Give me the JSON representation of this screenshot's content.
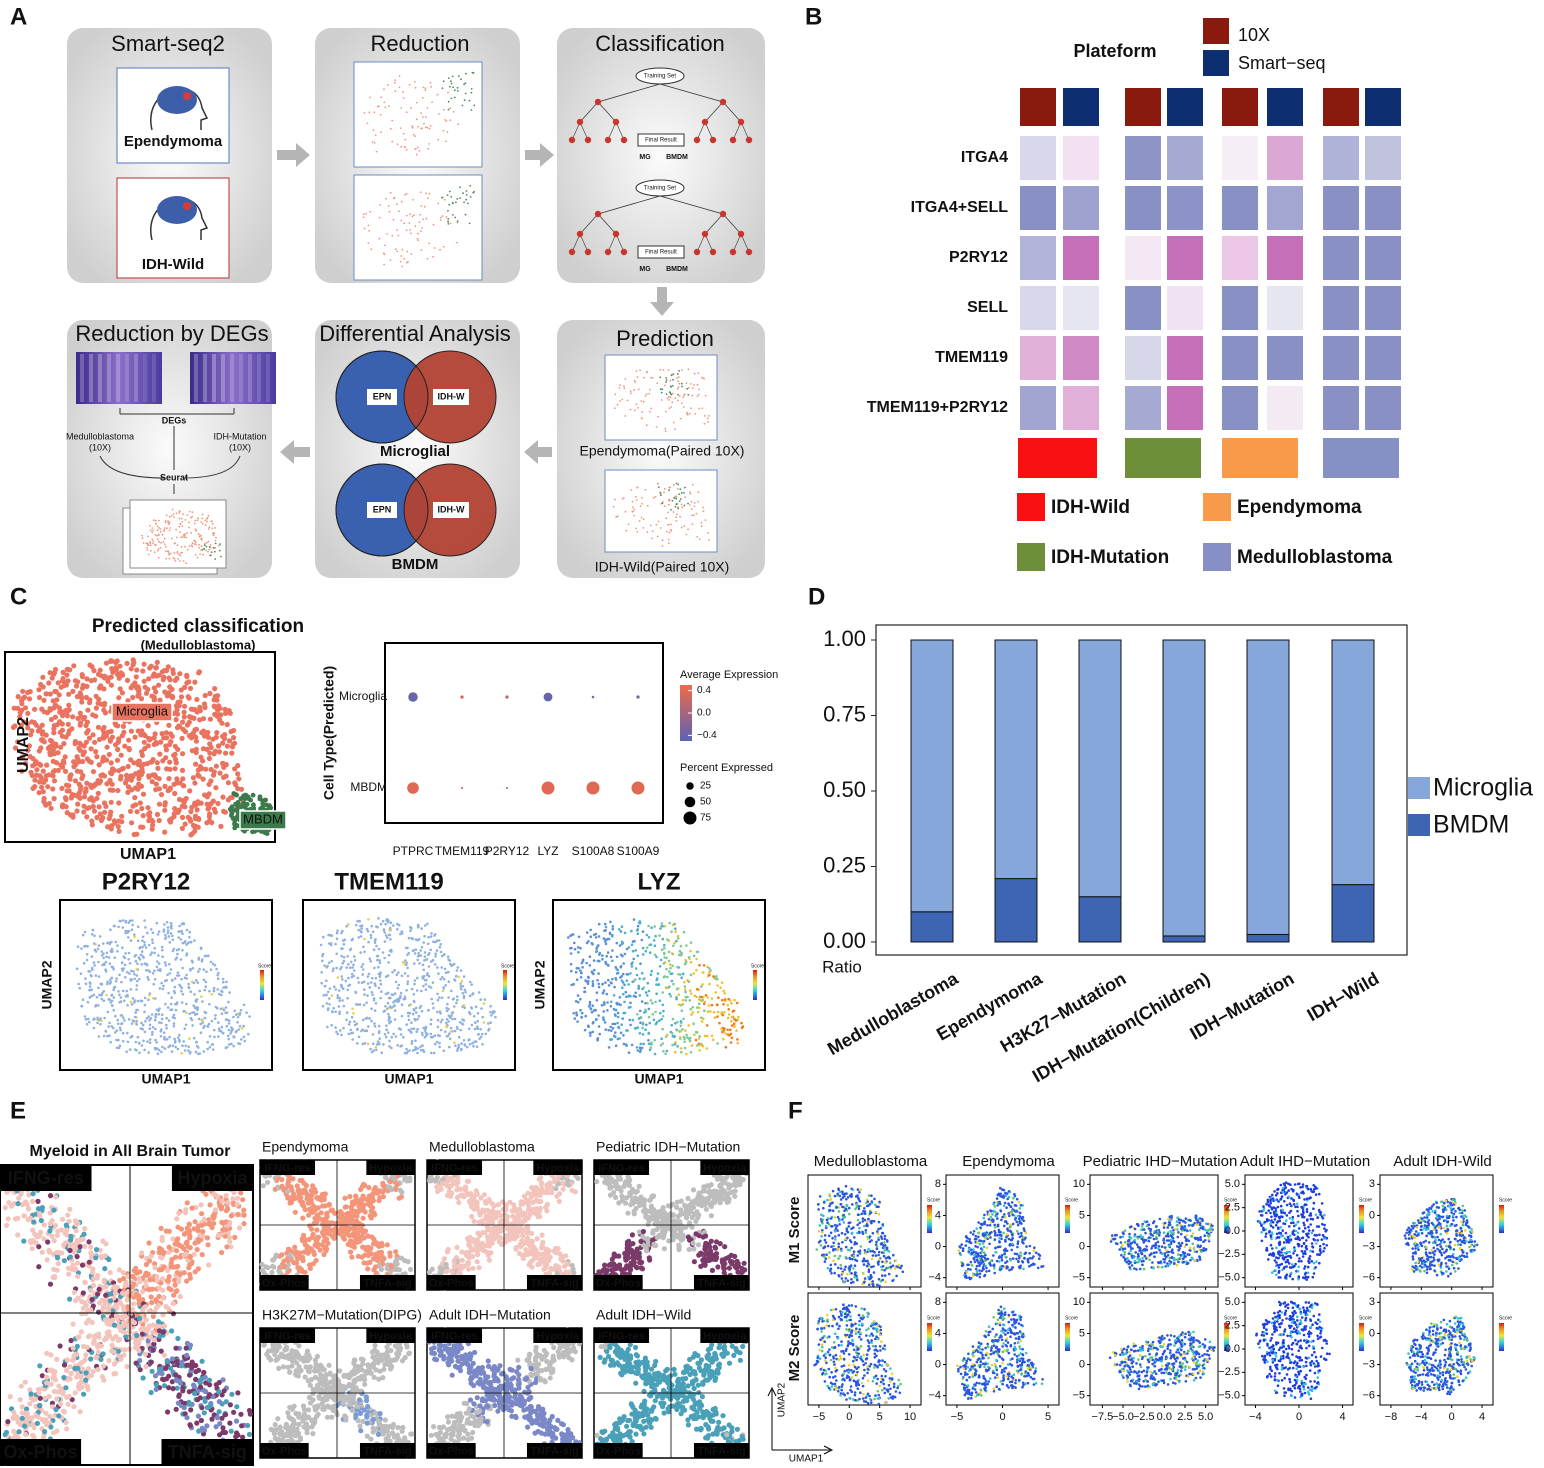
{
  "A": {
    "letter": "A",
    "smartseq": {
      "title": "Smart-seq2",
      "tumor1": "Ependymoma",
      "tumor2": "IDH-Wild"
    },
    "reduction": {
      "title": "Reduction"
    },
    "classification": {
      "title": "Classification",
      "training": "Training Set",
      "final": "Final Result",
      "mg": "MG",
      "bmdm": "BMDM"
    },
    "prediction": {
      "title": "Prediction",
      "cap1": "Ependymoma(Paired 10X)",
      "cap2": "IDH-Wild(Paired 10X)"
    },
    "differential": {
      "title": "Differential Analysis",
      "left": "EPN",
      "right": "IDH-W",
      "cap1": "Microglial",
      "cap2": "BMDM"
    },
    "degs": {
      "title": "Reduction by DEGs",
      "degs": "DEGs",
      "src1": "Medulloblastoma",
      "src1b": "(10X)",
      "src2": "IDH-Mutation",
      "src2b": "(10X)",
      "tool": "Seurat"
    }
  },
  "B": {
    "letter": "B",
    "legend_title": "Plateform",
    "platforms": [
      {
        "name": "10X",
        "color": "#8b1a0e"
      },
      {
        "name": "Smart−seq",
        "color": "#0d2f72"
      }
    ],
    "rows": [
      "ITGA4",
      "ITGA4+SELL",
      "P2RY12",
      "SELL",
      "TMEM119",
      "TMEM119+P2RY12"
    ],
    "cells": [
      [
        "#d8d8ea",
        "#f3e0f0",
        "#8e94c6",
        "#a6a9d2",
        "#f6eef6",
        "#dba8d5",
        "#b0b3d8",
        "#c0c2de"
      ],
      [
        "#8890c4",
        "#9da2cf",
        "#8890c4",
        "#8d93c6",
        "#8890c4",
        "#a2a6d1",
        "#8890c4",
        "#8890c4"
      ],
      [
        "#b2b5d9",
        "#c56fb8",
        "#f3e8f3",
        "#c56fb8",
        "#ecc8e6",
        "#c56fb8",
        "#8890c4",
        "#8890c4"
      ],
      [
        "#d8d8ea",
        "#e5e6f1",
        "#8890c4",
        "#f1e2f1",
        "#8890c4",
        "#e6e6f1",
        "#8890c4",
        "#8890c4"
      ],
      [
        "#e0b2da",
        "#cf8ac6",
        "#d6d8ea",
        "#c56fb8",
        "#8890c4",
        "#8890c4",
        "#8890c4",
        "#8890c4"
      ],
      [
        "#a1a5d0",
        "#e0b0d9",
        "#a6a9d2",
        "#c56fb8",
        "#8890c4",
        "#f4eaf4",
        "#8890c4",
        "#8890c4"
      ]
    ],
    "groups": [
      {
        "name": "IDH-Wild",
        "color": "#f80f0f"
      },
      {
        "name": "IDH-Mutation",
        "color": "#6f8e3a"
      },
      {
        "name": "Ependymoma",
        "color": "#f79a4a"
      },
      {
        "name": "Medulloblastoma",
        "color": "#8790c4"
      }
    ]
  },
  "C": {
    "letter": "C",
    "umap_title": "Predicted classification",
    "umap_subtitle": "(Medulloblastoma)",
    "umap_x": "UMAP1",
    "umap_y": "UMAP2",
    "cluster1": "Microglia",
    "cluster2": "MBDM",
    "features": [
      "P2RY12",
      "TMEM119",
      "LYZ"
    ],
    "score": "Score"
  },
  "D": {
    "letter": "D"
  },
  "E": {
    "letter": "E",
    "main_title": "Myeloid in All Brain Tumor",
    "quadrants": [
      "IFNG-res",
      "Hypoxia",
      "Ox-Phos",
      "TNFA-sig"
    ],
    "subplots": [
      {
        "title": "Ependymoma",
        "color": "#f4957a"
      },
      {
        "title": "Medulloblastoma",
        "color": "#f2c4bc"
      },
      {
        "title": "Pediatric IDH−Mutation",
        "color": "#7b3a69"
      },
      {
        "title": "H3K27M−Mutation(DIPG)",
        "color": "#7a9bd6"
      },
      {
        "title": "Adult IDH−Mutation",
        "color": "#7a88c8"
      },
      {
        "title": "Adult IDH−Wild",
        "color": "#4aa0b8"
      }
    ]
  },
  "F": {
    "letter": "F",
    "rows": [
      "M1 Score",
      "M2 Score"
    ],
    "axis_y": "UMAP2",
    "axis_x": "UMAP1",
    "score": "Score",
    "plots": [
      {
        "title": "Medulloblastoma",
        "xticks": [
          {
            "value": -5,
            "label": "−5"
          },
          0,
          5,
          10
        ]
      },
      {
        "title": "Ependymoma",
        "xticks": [
          {
            "value": -5,
            "label": "−5"
          },
          0,
          5
        ],
        "yticks": [
          8,
          4,
          0,
          {
            "value": -4,
            "label": "−4"
          }
        ]
      },
      {
        "title": "Pediatric IHD−Mutation",
        "xticks": [
          {
            "value": -7.5,
            "label": "−7.5"
          },
          {
            "value": -5,
            "label": "−5.0"
          },
          {
            "value": -2.5,
            "label": "−2.5"
          },
          {
            "value": 0,
            "label": "0.0"
          },
          2.5,
          {
            "value": 5,
            "label": "5.0"
          }
        ],
        "yticks": [
          10,
          5,
          0,
          {
            "value": -5,
            "label": "−5"
          }
        ]
      },
      {
        "title": "Adult IHD−Mutation",
        "xticks": [
          {
            "value": -4,
            "label": "−4"
          },
          0,
          4
        ],
        "yticks": [
          {
            "value": 5,
            "label": "5.0"
          },
          2.5,
          {
            "value": 0,
            "label": "0.0"
          },
          {
            "value": -2.5,
            "label": "−2.5"
          },
          {
            "value": -5,
            "label": "−5.0"
          }
        ]
      },
      {
        "title": "Adult IDH-Wild",
        "xticks": [
          {
            "value": -8,
            "label": "−8"
          },
          {
            "value": -4,
            "label": "−4"
          },
          0,
          4
        ],
        "yticks": [
          3,
          0,
          {
            "value": -3,
            "label": "−3"
          },
          {
            "value": -6,
            "label": "−6"
          }
        ]
      }
    ]
  },
  "chart_data": [
    {
      "type": "dot",
      "categories": [
        "PTPRC",
        "TMEM119",
        "P2RY12",
        "LYZ",
        "S100A8",
        "S100A9"
      ],
      "y_label": "Cell Type(Predicted)",
      "series": [
        {
          "name": "Microglia",
          "values": [
            -0.4,
            0.3,
            0.2,
            -0.4,
            -0.2,
            -0.3
          ],
          "sizes": [
            40,
            5,
            5,
            35,
            3,
            5
          ]
        },
        {
          "name": "MBDM",
          "values": [
            0.4,
            0.0,
            0.0,
            0.4,
            0.4,
            0.4
          ],
          "sizes": [
            60,
            2,
            2,
            75,
            75,
            75
          ]
        }
      ],
      "color_title": "Average Expression",
      "clim": [
        -0.5,
        0.5
      ],
      "colors": [
        "#5a62b5",
        "#ef6a48"
      ],
      "colorticks": [
        0.4,
        {
          "value": 0,
          "label": "0.0"
        },
        {
          "value": -0.4,
          "label": "−0.4"
        }
      ],
      "size_title": "Percent Expressed",
      "size_ticks": [
        25,
        50,
        75
      ]
    },
    {
      "type": "stacked_bar",
      "categories": [
        "Medulloblastoma",
        "Ependymoma",
        "H3K27−Mutation",
        "IDH−Mutation(Children)",
        "IDH−Mutation",
        "IDH−Wild"
      ],
      "series": [
        {
          "name": "BMDM",
          "color": "#3e65b3",
          "values": [
            0.1,
            0.21,
            0.15,
            0.02,
            0.025,
            0.19
          ]
        },
        {
          "name": "Microglia",
          "color": "#85a7d9",
          "values": [
            0.9,
            0.79,
            0.85,
            0.98,
            0.975,
            0.81
          ]
        }
      ],
      "ylim": [
        0,
        1
      ],
      "yticks": [
        {
          "value": 0,
          "label": "0.00"
        },
        {
          "value": 0.25,
          "label": "0.25"
        },
        {
          "value": 0.5,
          "label": "0.50"
        },
        {
          "value": 0.75,
          "label": "0.75"
        },
        {
          "value": 1,
          "label": "1.00"
        }
      ],
      "y_label": "Ratio",
      "legend": "right"
    }
  ]
}
